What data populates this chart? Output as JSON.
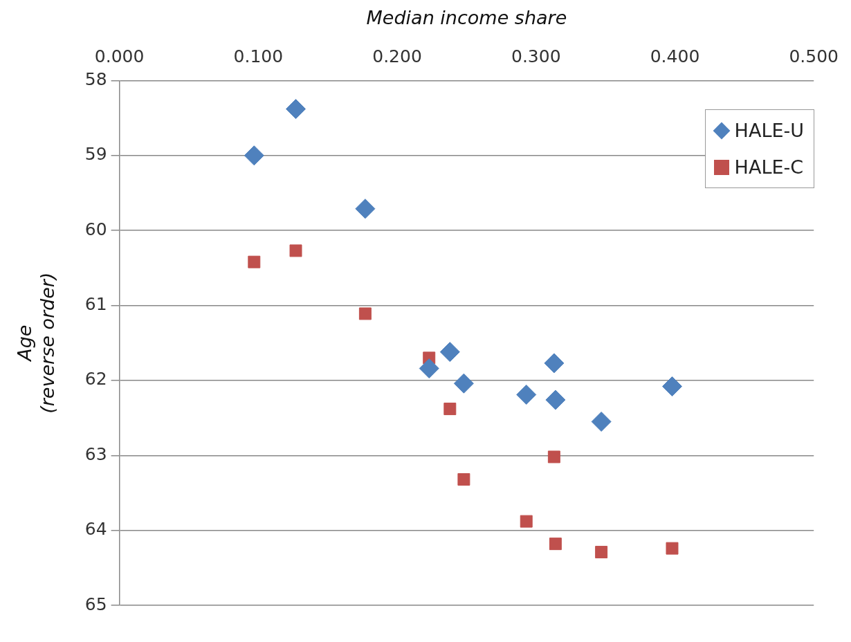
{
  "chart_data": {
    "type": "scatter",
    "xlabel": "Median income share",
    "ylabel": "Age\n(reverse order)",
    "xlim": [
      0,
      0.5
    ],
    "xticks": [
      {
        "value": 0,
        "label": "0.000"
      },
      {
        "value": 0.1,
        "label": "0.100"
      },
      {
        "value": 0.2,
        "label": "0.200"
      },
      {
        "value": 0.3,
        "label": "0.300"
      },
      {
        "value": 0.4,
        "label": "0.400"
      },
      {
        "value": 0.5,
        "label": "0.500"
      }
    ],
    "ylim": [
      65,
      58
    ],
    "yticks": [
      58,
      59,
      60,
      61,
      62,
      63,
      64,
      65
    ],
    "grid": "y",
    "legend": "top right",
    "series": [
      {
        "name": "HALE-U",
        "color": "#4f81bd",
        "marker": "diamond",
        "x": [
          0.097,
          0.127,
          0.177,
          0.223,
          0.238,
          0.248,
          0.293,
          0.313,
          0.314,
          0.347,
          0.398
        ],
        "values": [
          59.0,
          58.38,
          59.71,
          61.84,
          61.62,
          62.04,
          62.19,
          61.77,
          62.26,
          62.55,
          62.08
        ]
      },
      {
        "name": "HALE-C",
        "color": "#c0504d",
        "marker": "square",
        "x": [
          0.097,
          0.127,
          0.177,
          0.223,
          0.238,
          0.248,
          0.293,
          0.313,
          0.314,
          0.347,
          0.398
        ],
        "values": [
          60.42,
          60.27,
          61.11,
          61.7,
          62.38,
          63.32,
          63.88,
          63.02,
          64.18,
          64.29,
          64.24
        ]
      }
    ]
  }
}
